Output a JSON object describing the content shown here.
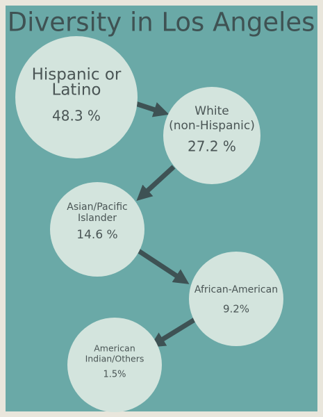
{
  "title": "Diversity in Los Angeles",
  "nodes": [
    {
      "label_lines": [
        "Hispanic or",
        "Latino"
      ],
      "value": "48.3 %"
    },
    {
      "label_lines": [
        "White",
        "(non-Hispanic)"
      ],
      "value": "27.2 %"
    },
    {
      "label_lines": [
        "Asian/Pacific",
        "Islander"
      ],
      "value": "14.6 %"
    },
    {
      "label_lines": [
        "African-American"
      ],
      "value": "9.2%"
    },
    {
      "label_lines": [
        "American",
        "Indian/Others"
      ],
      "value": "1.5%"
    }
  ]
}
